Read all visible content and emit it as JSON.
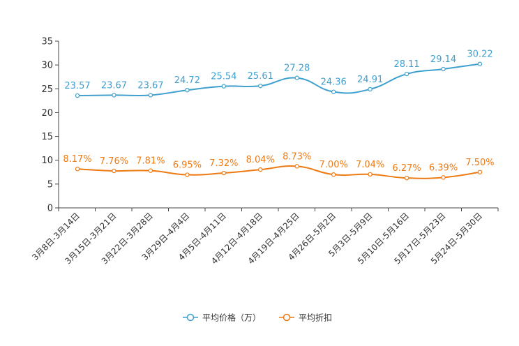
{
  "chart_data": {
    "type": "line",
    "title": "",
    "xlabel": "",
    "ylabel": "",
    "ylim": [
      0,
      35
    ],
    "yticks": [
      "0",
      "5",
      "10",
      "15",
      "20",
      "25",
      "30",
      "35"
    ],
    "ytick_values": [
      0,
      5,
      10,
      15,
      20,
      25,
      30,
      35
    ],
    "categories": [
      "3月8日-3月14日",
      "3月15日-3月21日",
      "3月22日-3月28日",
      "3月29日-4月4日",
      "4月5日-4月11日",
      "4月12日-4月18日",
      "4月19日-4月25日",
      "4月26日-5月2日",
      "5月3日-5月9日",
      "5月10日-5月16日",
      "5月17日-5月23日",
      "5月24日-5月30日"
    ],
    "series": [
      {
        "name": "平均价格（万）",
        "color": "#3fa0cf",
        "values": [
          23.57,
          23.67,
          23.67,
          24.72,
          25.54,
          25.61,
          27.28,
          24.36,
          24.91,
          28.11,
          29.14,
          30.22
        ],
        "labels": [
          "23.57",
          "23.67",
          "23.67",
          "24.72",
          "25.54",
          "25.61",
          "27.28",
          "24.36",
          "24.91",
          "28.11",
          "29.14",
          "30.22"
        ]
      },
      {
        "name": "平均折扣",
        "color": "#ee7a12",
        "values": [
          8.17,
          7.76,
          7.81,
          6.95,
          7.32,
          8.04,
          8.73,
          7.0,
          7.04,
          6.27,
          6.39,
          7.5
        ],
        "labels": [
          "8.17%",
          "7.76%",
          "7.81%",
          "6.95%",
          "7.32%",
          "8.04%",
          "8.73%",
          "7.00%",
          "7.04%",
          "6.27%",
          "6.39%",
          "7.50%"
        ]
      }
    ],
    "legend": "bottom-center",
    "grid": false
  }
}
